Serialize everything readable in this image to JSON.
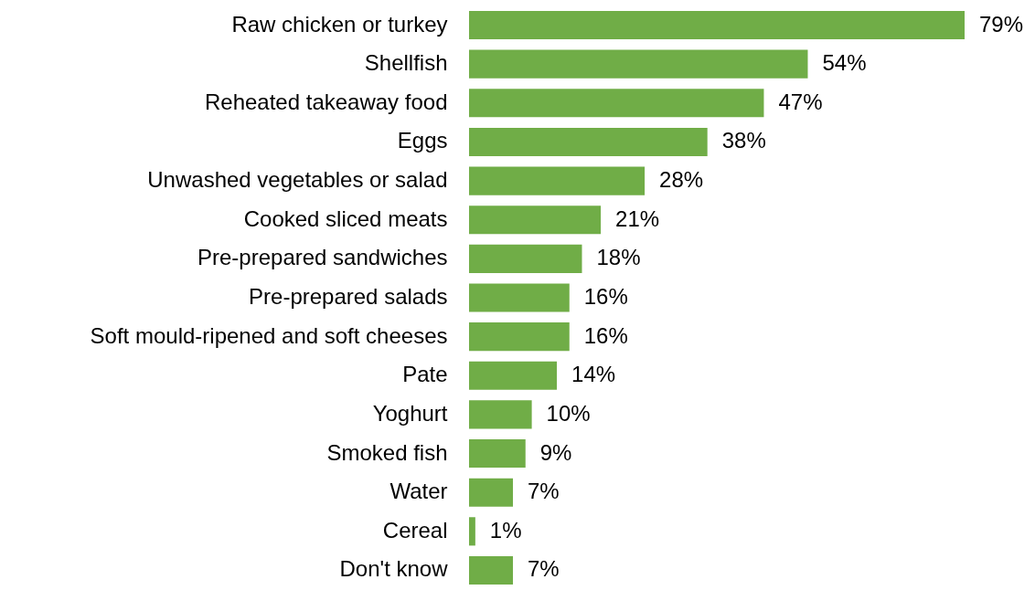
{
  "chart_data": {
    "type": "bar",
    "orientation": "horizontal",
    "color": "#70ad47",
    "categories": [
      "Raw chicken or turkey",
      "Shellfish",
      "Reheated takeaway food",
      "Eggs",
      "Unwashed vegetables or salad",
      "Cooked sliced meats",
      "Pre-prepared sandwiches",
      "Pre-prepared salads",
      "Soft mould-ripened and soft cheeses",
      "Pate",
      "Yoghurt",
      "Smoked fish",
      "Water",
      "Cereal",
      "Don't know"
    ],
    "values": [
      79,
      54,
      47,
      38,
      28,
      21,
      18,
      16,
      16,
      14,
      10,
      9,
      7,
      1,
      7
    ],
    "value_labels": [
      "79%",
      "54%",
      "47%",
      "38%",
      "28%",
      "21%",
      "18%",
      "16%",
      "16%",
      "14%",
      "10%",
      "9%",
      "7%",
      "1%",
      "7%"
    ]
  }
}
